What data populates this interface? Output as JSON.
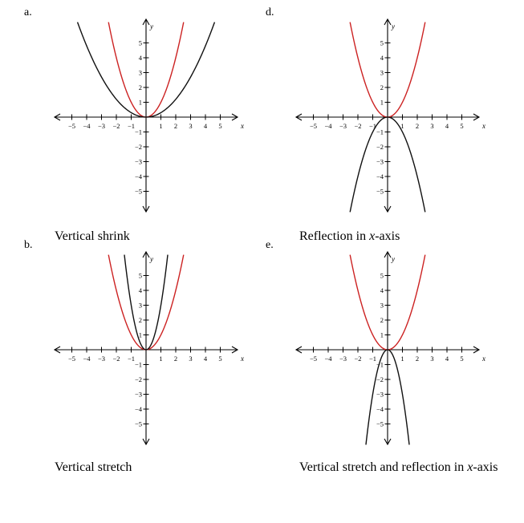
{
  "chart_data": [
    {
      "id": "a",
      "type": "line",
      "letter": "a.",
      "caption_before": "Vertical shrink",
      "caption_var": "",
      "caption_after": "",
      "xlabel": "x",
      "ylabel": "y",
      "xlim": [
        -6,
        6
      ],
      "ylim": [
        -6,
        6
      ],
      "x_ticks": [
        "−5",
        "−4",
        "−3",
        "−2",
        "−1",
        "1",
        "2",
        "3",
        "4",
        "5"
      ],
      "y_ticks": [
        "−5",
        "−4",
        "−3",
        "−2",
        "−1",
        "1",
        "2",
        "3",
        "4",
        "5"
      ],
      "series": [
        {
          "equation": "y = x^2",
          "a": 1,
          "color": "#cc2222"
        },
        {
          "equation": "y = 0.3x^2",
          "a": 0.3,
          "color": "#111111"
        }
      ]
    },
    {
      "id": "d",
      "type": "line",
      "letter": "d.",
      "caption_before": "Reflection in ",
      "caption_var": "x",
      "caption_after": "-axis",
      "xlabel": "x",
      "ylabel": "y",
      "xlim": [
        -6,
        6
      ],
      "ylim": [
        -6,
        6
      ],
      "x_ticks": [
        "−5",
        "−4",
        "−3",
        "−2",
        "−1",
        "1",
        "2",
        "3",
        "4",
        "5"
      ],
      "y_ticks": [
        "−5",
        "−4",
        "−3",
        "−2",
        "−1",
        "1",
        "2",
        "3",
        "4",
        "5"
      ],
      "series": [
        {
          "equation": "y = x^2",
          "a": 1,
          "color": "#cc2222"
        },
        {
          "equation": "y = -x^2",
          "a": -1,
          "color": "#111111"
        }
      ]
    },
    {
      "id": "b",
      "type": "line",
      "letter": "b.",
      "caption_before": "Vertical stretch",
      "caption_var": "",
      "caption_after": "",
      "xlabel": "x",
      "ylabel": "y",
      "xlim": [
        -6,
        6
      ],
      "ylim": [
        -6,
        6
      ],
      "x_ticks": [
        "−5",
        "−4",
        "−3",
        "−2",
        "−1",
        "1",
        "2",
        "3",
        "4",
        "5"
      ],
      "y_ticks": [
        "−5",
        "−4",
        "−3",
        "−2",
        "−1",
        "1",
        "2",
        "3",
        "4",
        "5"
      ],
      "series": [
        {
          "equation": "y = x^2",
          "a": 1,
          "color": "#cc2222"
        },
        {
          "equation": "y = 3x^2",
          "a": 3,
          "color": "#111111"
        }
      ]
    },
    {
      "id": "e",
      "type": "line",
      "letter": "e.",
      "caption_before": "Vertical stretch and reflection in ",
      "caption_var": "x",
      "caption_after": "-axis",
      "xlabel": "x",
      "ylabel": "y",
      "xlim": [
        -6,
        6
      ],
      "ylim": [
        -6,
        6
      ],
      "x_ticks": [
        "−5",
        "−4",
        "−3",
        "−2",
        "−1",
        "1",
        "2",
        "3",
        "4",
        "5"
      ],
      "y_ticks": [
        "−5",
        "−4",
        "−3",
        "−2",
        "−1",
        "1",
        "2",
        "3",
        "4",
        "5"
      ],
      "series": [
        {
          "equation": "y = x^2",
          "a": 1,
          "color": "#cc2222"
        },
        {
          "equation": "y = -3x^2",
          "a": -3,
          "color": "#111111"
        }
      ]
    }
  ]
}
